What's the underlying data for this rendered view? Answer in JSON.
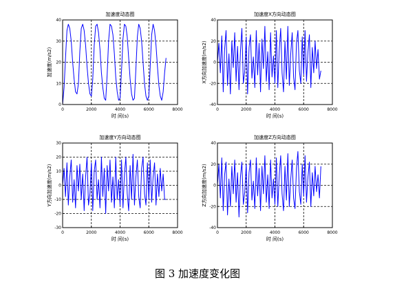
{
  "figure_caption": "图 3  加速度变化图",
  "chart_data": [
    {
      "type": "line",
      "title": "加速度动态图",
      "xlabel": "时 间(s)",
      "ylabel": "加速度(m/s2)",
      "xlim": [
        0,
        8000
      ],
      "ylim": [
        0,
        40
      ],
      "xticks": [
        "0",
        "2000",
        "4000",
        "6000",
        "8000"
      ],
      "yticks": [
        "0",
        "10",
        "20",
        "30",
        "40"
      ],
      "grid": "dashed",
      "color": "#0000ff",
      "series": [
        {
          "x": [
            0,
            100,
            200,
            300,
            400,
            500,
            600,
            700,
            800,
            900,
            1000,
            1100,
            1200,
            1300,
            1400,
            1500,
            1600,
            1700,
            1800,
            1900,
            2000,
            2100,
            2200,
            2300,
            2400,
            2500,
            2600,
            2700,
            2800,
            2900,
            3000,
            3100,
            3200,
            3300,
            3400,
            3500,
            3600,
            3700,
            3800,
            3900,
            4000,
            4100,
            4200,
            4300,
            4400,
            4500,
            4600,
            4700,
            4800,
            4900,
            5000,
            5100,
            5200,
            5300,
            5400,
            5500,
            5600,
            5700,
            5800,
            5900,
            6000,
            6100,
            6200,
            6300,
            6400,
            6500,
            6600,
            6700,
            6800,
            6900,
            7000,
            7100,
            7200
          ],
          "y": [
            0,
            8,
            22,
            35,
            38,
            36,
            30,
            20,
            12,
            6,
            5,
            10,
            25,
            36,
            38,
            35,
            28,
            18,
            10,
            5,
            4,
            12,
            28,
            37,
            38,
            34,
            26,
            15,
            8,
            3,
            2,
            14,
            30,
            38,
            37,
            33,
            24,
            13,
            6,
            2,
            3,
            16,
            31,
            38,
            37,
            32,
            22,
            12,
            5,
            2,
            3,
            17,
            32,
            38,
            36,
            30,
            20,
            10,
            4,
            2,
            4,
            18,
            33,
            38,
            35,
            28,
            18,
            9,
            4,
            2,
            6,
            15,
            22
          ]
        }
      ]
    },
    {
      "type": "line",
      "title": "加速度X方向动态图",
      "xlabel": "时 间(s)",
      "ylabel": "X方向加速度(m/s2)",
      "xlim": [
        0,
        8000
      ],
      "ylim": [
        -40,
        40
      ],
      "xticks": [
        "0",
        "2000",
        "4000",
        "6000",
        "8000"
      ],
      "yticks": [
        "-40",
        "-20",
        "0",
        "20",
        "40"
      ],
      "grid": "dashed",
      "color": "#0000ff",
      "series": [
        {
          "x": [
            0,
            100,
            200,
            300,
            400,
            500,
            600,
            700,
            800,
            900,
            1000,
            1100,
            1200,
            1300,
            1400,
            1500,
            1600,
            1700,
            1800,
            1900,
            2000,
            2100,
            2200,
            2300,
            2400,
            2500,
            2600,
            2700,
            2800,
            2900,
            3000,
            3100,
            3200,
            3300,
            3400,
            3500,
            3600,
            3700,
            3800,
            3900,
            4000,
            4100,
            4200,
            4300,
            4400,
            4500,
            4600,
            4700,
            4800,
            4900,
            5000,
            5100,
            5200,
            5300,
            5400,
            5500,
            5600,
            5700,
            5800,
            5900,
            6000,
            6100,
            6200,
            6300,
            6400,
            6500,
            6600,
            6700,
            6800,
            6900,
            7000,
            7100,
            7200
          ],
          "y": [
            0,
            18,
            -10,
            25,
            -28,
            12,
            30,
            -22,
            8,
            -30,
            20,
            -5,
            28,
            -18,
            15,
            -26,
            10,
            32,
            -20,
            -8,
            24,
            -30,
            14,
            26,
            -15,
            5,
            -24,
            30,
            -12,
            18,
            -28,
            22,
            -6,
            34,
            -18,
            10,
            -26,
            28,
            -14,
            6,
            -20,
            30,
            -24,
            12,
            32,
            -10,
            -28,
            20,
            -16,
            34,
            -22,
            8,
            28,
            -14,
            -26,
            18,
            30,
            -8,
            -20,
            24,
            -12,
            30,
            -18,
            10,
            26,
            -24,
            14,
            -10,
            20,
            -6,
            12,
            -16,
            -8
          ]
        }
      ]
    },
    {
      "type": "line",
      "title": "加速度Y方向动态图",
      "xlabel": "时 间(s)",
      "ylabel": "Y方向加速度(m/s2)",
      "xlim": [
        0,
        8000
      ],
      "ylim": [
        -30,
        30
      ],
      "xticks": [
        "0",
        "2000",
        "4000",
        "6000",
        "8000"
      ],
      "yticks": [
        "-30",
        "-20",
        "-10",
        "0",
        "10",
        "20",
        "30"
      ],
      "grid": "dashed",
      "color": "#0000ff",
      "series": [
        {
          "x": [
            0,
            100,
            200,
            300,
            400,
            500,
            600,
            700,
            800,
            900,
            1000,
            1100,
            1200,
            1300,
            1400,
            1500,
            1600,
            1700,
            1800,
            1900,
            2000,
            2100,
            2200,
            2300,
            2400,
            2500,
            2600,
            2700,
            2800,
            2900,
            3000,
            3100,
            3200,
            3300,
            3400,
            3500,
            3600,
            3700,
            3800,
            3900,
            4000,
            4100,
            4200,
            4300,
            4400,
            4500,
            4600,
            4700,
            4800,
            4900,
            5000,
            5100,
            5200,
            5300,
            5400,
            5500,
            5600,
            5700,
            5800,
            5900,
            6000,
            6100,
            6200,
            6300,
            6400,
            6500,
            6600,
            6700,
            6800,
            6900,
            7000,
            7100,
            7200
          ],
          "y": [
            0,
            12,
            -8,
            16,
            -14,
            6,
            18,
            -12,
            4,
            -16,
            14,
            -4,
            15,
            -10,
            8,
            -18,
            6,
            20,
            -14,
            -6,
            16,
            -18,
            10,
            18,
            -10,
            4,
            -16,
            20,
            -8,
            12,
            -20,
            14,
            -4,
            18,
            -12,
            6,
            -16,
            20,
            -10,
            4,
            -14,
            18,
            -16,
            8,
            20,
            -6,
            -18,
            14,
            -10,
            22,
            -14,
            6,
            18,
            -8,
            -16,
            12,
            20,
            -6,
            -14,
            16,
            -10,
            18,
            -12,
            6,
            16,
            -14,
            8,
            -8,
            12,
            -4,
            8,
            -10,
            -10
          ]
        }
      ]
    },
    {
      "type": "line",
      "title": "加速度Z方向动态图",
      "xlabel": "时 间(s)",
      "ylabel": "Z方向加速度(m/s2)",
      "xlim": [
        0,
        8000
      ],
      "ylim": [
        -40,
        40
      ],
      "xticks": [
        "0",
        "2000",
        "4000",
        "6000",
        "8000"
      ],
      "yticks": [
        "-40",
        "-20",
        "0",
        "20",
        "40"
      ],
      "grid": "dashed",
      "color": "#0000ff",
      "series": [
        {
          "x": [
            0,
            100,
            200,
            300,
            400,
            500,
            600,
            700,
            800,
            900,
            1000,
            1100,
            1200,
            1300,
            1400,
            1500,
            1600,
            1700,
            1800,
            1900,
            2000,
            2100,
            2200,
            2300,
            2400,
            2500,
            2600,
            2700,
            2800,
            2900,
            3000,
            3100,
            3200,
            3300,
            3400,
            3500,
            3600,
            3700,
            3800,
            3900,
            4000,
            4100,
            4200,
            4300,
            4400,
            4500,
            4600,
            4700,
            4800,
            4900,
            5000,
            5100,
            5200,
            5300,
            5400,
            5500,
            5600,
            5700,
            5800,
            5900,
            6000,
            6100,
            6200,
            6300,
            6400,
            6500,
            6600,
            6700,
            6800,
            6900,
            7000,
            7100,
            7200
          ],
          "y": [
            0,
            20,
            -12,
            26,
            -24,
            10,
            22,
            -28,
            6,
            -20,
            18,
            -8,
            24,
            -16,
            12,
            -30,
            8,
            22,
            -18,
            -6,
            20,
            -26,
            12,
            24,
            -14,
            4,
            -22,
            26,
            -10,
            16,
            -24,
            18,
            -8,
            28,
            -16,
            10,
            -22,
            24,
            -12,
            6,
            -18,
            26,
            -20,
            10,
            28,
            -8,
            -24,
            18,
            -14,
            30,
            -20,
            6,
            24,
            -12,
            -22,
            16,
            32,
            -6,
            -18,
            20,
            -10,
            28,
            -16,
            8,
            22,
            -20,
            12,
            -10,
            18,
            -6,
            10,
            -12,
            18
          ]
        }
      ]
    }
  ]
}
